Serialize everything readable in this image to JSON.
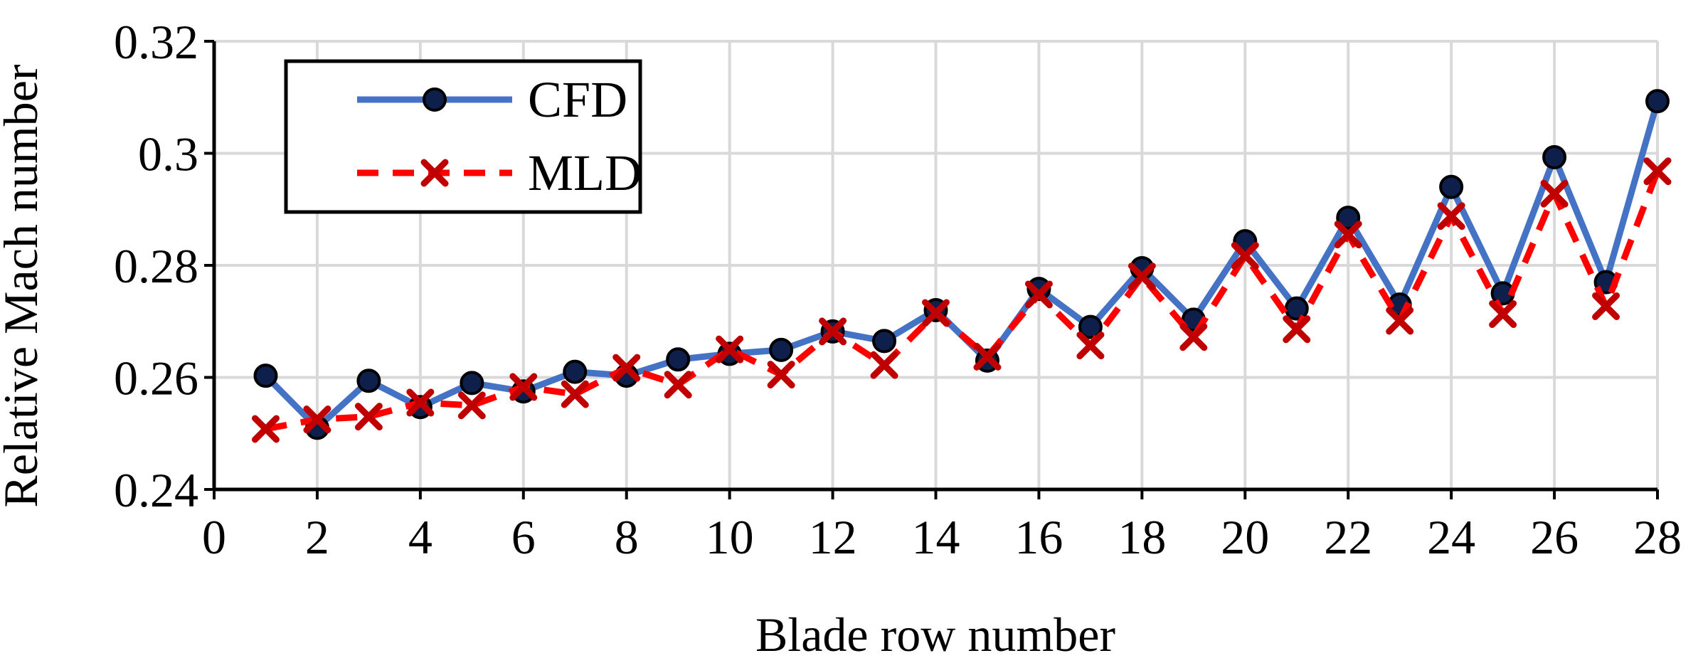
{
  "chart_data": {
    "type": "line",
    "xlabel": "Blade row number",
    "ylabel": "Relative Mach number",
    "xlim": [
      0,
      28
    ],
    "ylim": [
      0.24,
      0.32
    ],
    "x_ticks": [
      "0",
      "2",
      "4",
      "6",
      "8",
      "10",
      "12",
      "14",
      "16",
      "18",
      "20",
      "22",
      "24",
      "26",
      "28"
    ],
    "y_ticks": [
      "0.24",
      "0.26",
      "0.28",
      "0.3",
      "0.32"
    ],
    "grid": true,
    "legend_position": "top-left",
    "x": [
      1,
      2,
      3,
      4,
      5,
      6,
      7,
      8,
      9,
      10,
      11,
      12,
      13,
      14,
      15,
      16,
      17,
      18,
      19,
      20,
      21,
      22,
      23,
      24,
      25,
      26,
      27,
      28
    ],
    "series": [
      {
        "name": "CFD",
        "color": "#4472C4",
        "marker": "circle",
        "marker_color": "#0D1F4A",
        "line_style": "solid",
        "values": [
          0.2603,
          0.251,
          0.2594,
          0.2547,
          0.259,
          0.2575,
          0.261,
          0.2603,
          0.2632,
          0.2642,
          0.2649,
          0.2682,
          0.2665,
          0.272,
          0.263,
          0.2758,
          0.269,
          0.2795,
          0.2703,
          0.2843,
          0.2723,
          0.2885,
          0.273,
          0.294,
          0.275,
          0.2993,
          0.277,
          0.3093
        ]
      },
      {
        "name": "MLD",
        "color": "#FF0000",
        "marker": "x",
        "marker_color": "#C00000",
        "line_style": "dashed",
        "values": [
          0.2508,
          0.2525,
          0.253,
          0.2555,
          0.255,
          0.2583,
          0.257,
          0.2617,
          0.2587,
          0.265,
          0.2605,
          0.2682,
          0.2622,
          0.2715,
          0.2637,
          0.2748,
          0.2657,
          0.278,
          0.2672,
          0.2817,
          0.2686,
          0.2855,
          0.2701,
          0.2888,
          0.2713,
          0.2928,
          0.2727,
          0.2968
        ]
      }
    ]
  }
}
